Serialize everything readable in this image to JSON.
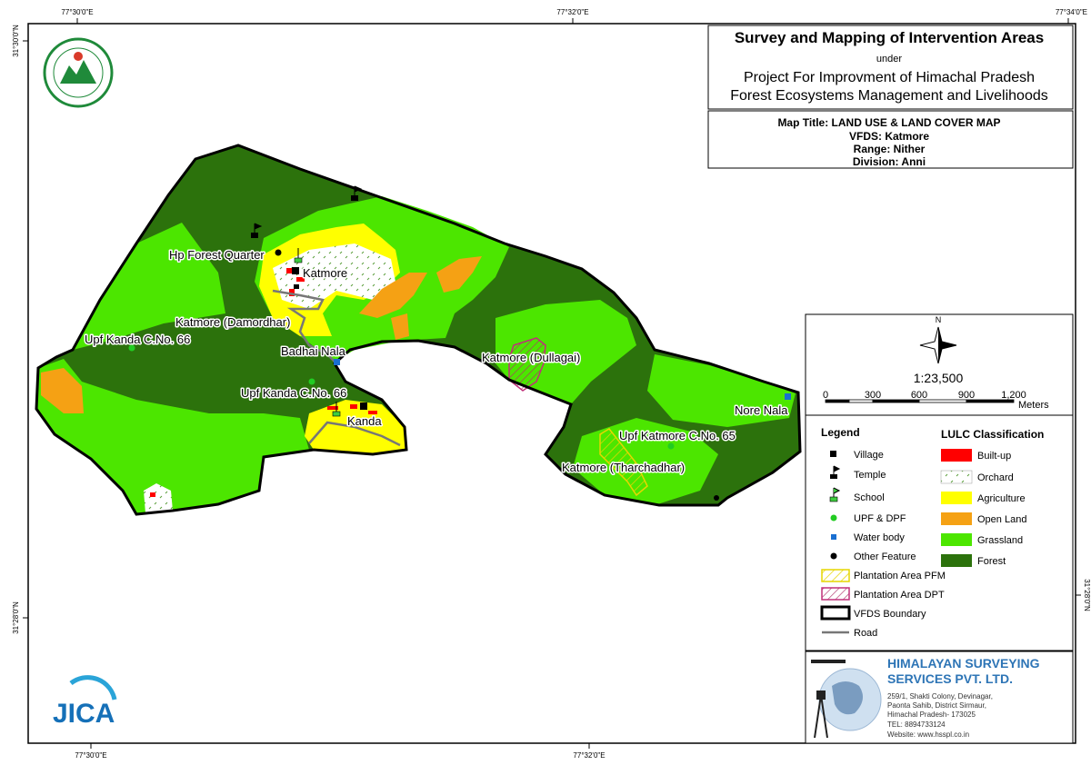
{
  "coordinates": {
    "top": [
      "77°30'0\"E",
      "77°32'0\"E",
      "77°34'0\"E"
    ],
    "bottom": [
      "77°30'0\"E",
      "77°32'0\"E"
    ],
    "left": [
      "31°30'0\"N",
      "31°28'0\"N"
    ],
    "right": [
      "31°28'0\"N"
    ]
  },
  "title_block": {
    "title": "Survey and Mapping of Intervention Areas",
    "under": "under",
    "project_line1": "Project For Improvment of Himachal Pradesh",
    "project_line2": "Forest Ecosystems Management and Livelihoods"
  },
  "map_info": {
    "map_title": "Map Title: LAND USE & LAND COVER MAP",
    "vfds": "VFDS: Katmore",
    "range": "Range: Nither",
    "division": "Division: Anni"
  },
  "map_labels": [
    "Hp Forest Quarter",
    "Katmore",
    "Katmore (Damordhar)",
    "Upf Kanda C.No. 66",
    "Badhai Nala",
    "Upf Kanda C.No. 66",
    "Kanda",
    "Katmore (Dullagai)",
    "Nore Nala",
    "Upf Katmore C.No. 65",
    "Katmore (Tharchadhar)"
  ],
  "north_arrow": "N",
  "scale": {
    "ratio": "1:23,500",
    "ticks": [
      "0",
      "300",
      "600",
      "900",
      "1,200"
    ],
    "unit": "Meters"
  },
  "legend": {
    "title": "Legend",
    "items": [
      "Village",
      "Temple",
      "School",
      "UPF & DPF",
      "Water body",
      "Other Feature",
      "Plantation Area PFM",
      "Plantation Area DPT",
      "VFDS Boundary",
      "Road"
    ]
  },
  "lulc": {
    "title": "LULC Classification",
    "classes": [
      "Built-up",
      "Orchard",
      "Agriculture",
      "Open Land",
      "Grassland",
      "Forest"
    ]
  },
  "company": {
    "name_line1": "HIMALAYAN SURVEYING",
    "name_line2": "SERVICES PVT. LTD.",
    "address": [
      "259/1, Shakti Colony, Devinagar,",
      "Paonta Sahib, District Sirmaur,",
      "Himachal Pradesh- 173025",
      "TEL: 8894733124",
      "Website: www.hsspl.co.in"
    ]
  },
  "logos": {
    "jica": "JICA"
  }
}
